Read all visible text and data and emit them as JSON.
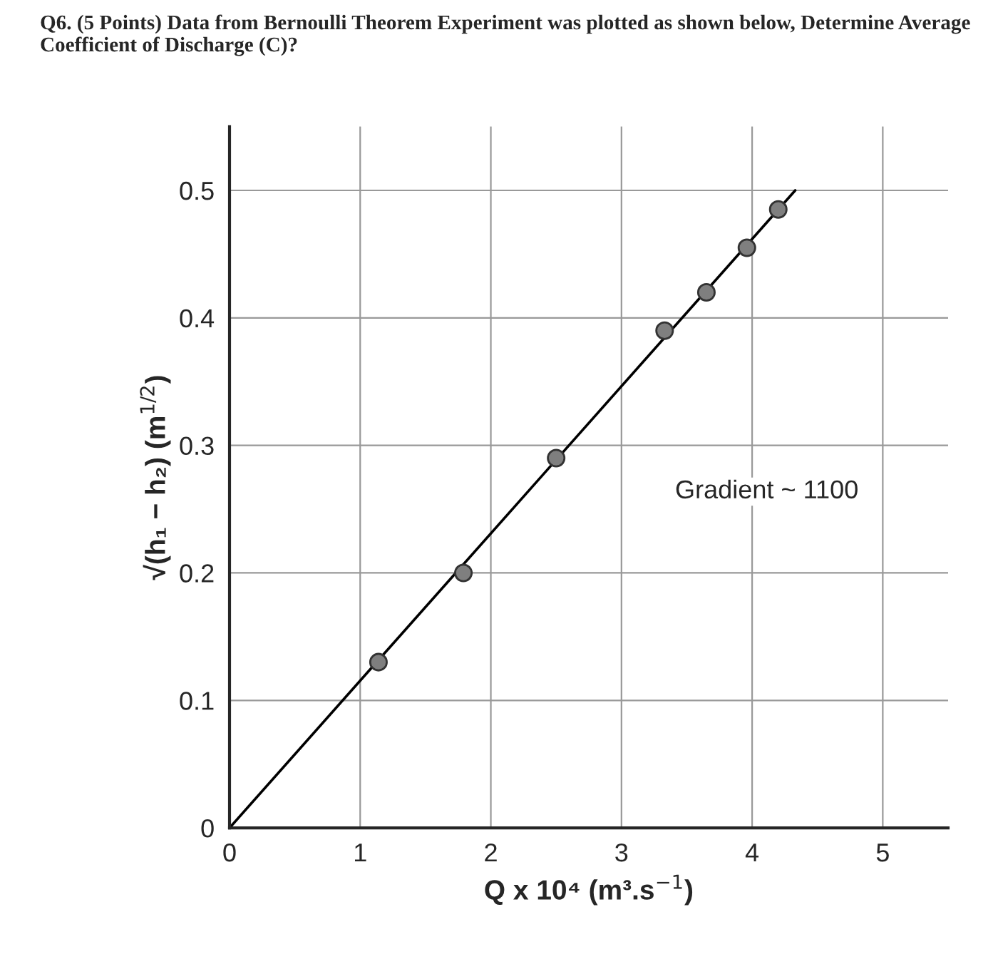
{
  "chart_data": {
    "type": "scatter",
    "title": "Q6. (5 Points) Data from Bernoulli Theorem Experiment was plotted as shown below, Determine Average Coefficient of Discharge (C)?",
    "xlabel": "Q x 10⁴ (m³.s$^{−1}$)",
    "ylabel": "√(h₁ − h₂) (m$^{1/2}$)",
    "annotations": [
      "Gradient ~ 1100"
    ],
    "series": [
      {
        "color": "#7f7f7f",
        "marker": "circle",
        "x": [
          1.14,
          1.79,
          2.5,
          3.33,
          3.65,
          3.96,
          4.2
        ],
        "values": [
          0.13,
          0.2,
          0.29,
          0.39,
          0.42,
          0.455,
          0.485
        ]
      },
      {
        "type": "line",
        "color": "#000000",
        "marker": "none",
        "line_style": "solid",
        "x": [
          0,
          4.33
        ],
        "values": [
          0,
          0.5
        ]
      }
    ],
    "xlim": [
      0,
      5.5
    ],
    "ylim": [
      0,
      0.55
    ],
    "xticks": [
      0,
      1,
      2,
      3,
      4,
      5
    ],
    "yticks": [
      0,
      0.1,
      0.2,
      0.3,
      0.4,
      0.5
    ],
    "grid": true
  }
}
